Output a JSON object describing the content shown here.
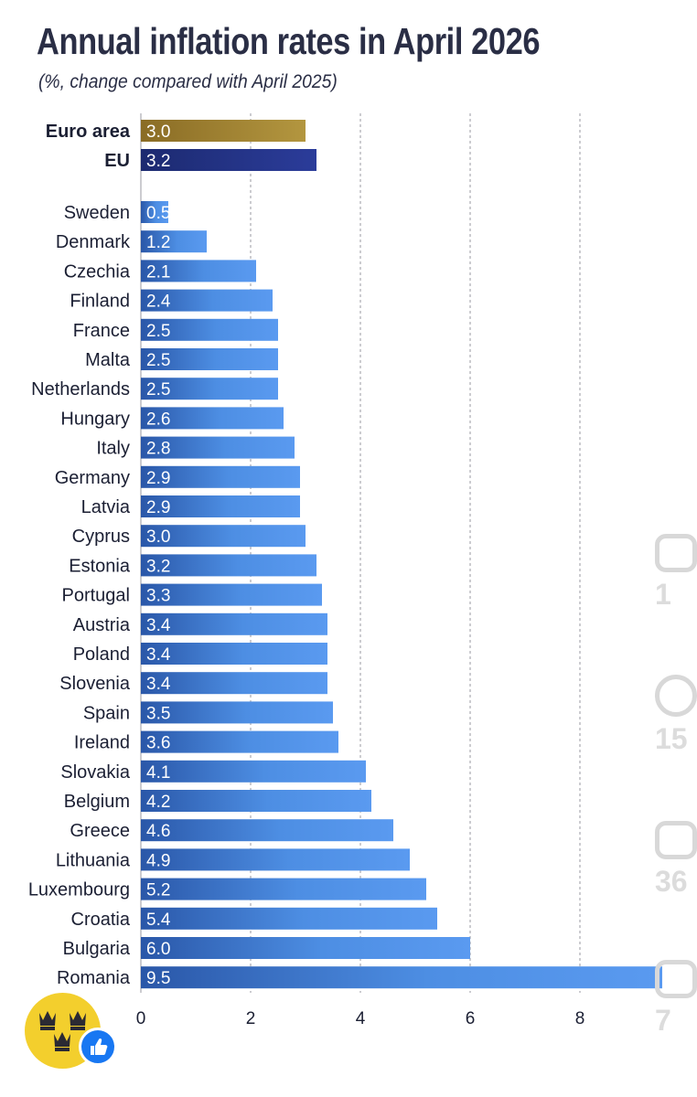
{
  "chart_data": {
    "type": "bar",
    "orientation": "horizontal",
    "title": "Annual inflation rates in April 2026",
    "subtitle": "(%, change compared with April 2025)",
    "aggregates": [
      "Euro area",
      "EU"
    ],
    "categories": [
      "Euro area",
      "EU",
      "Sweden",
      "Denmark",
      "Czechia",
      "Finland",
      "France",
      "Malta",
      "Netherlands",
      "Hungary",
      "Italy",
      "Germany",
      "Latvia",
      "Cyprus",
      "Estonia",
      "Portugal",
      "Austria",
      "Poland",
      "Slovenia",
      "Spain",
      "Ireland",
      "Slovakia",
      "Belgium",
      "Greece",
      "Lithuania",
      "Luxembourg",
      "Croatia",
      "Bulgaria",
      "Romania"
    ],
    "values": [
      3.0,
      3.2,
      0.5,
      1.2,
      2.1,
      2.4,
      2.5,
      2.5,
      2.5,
      2.6,
      2.8,
      2.9,
      2.9,
      3.0,
      3.2,
      3.3,
      3.4,
      3.4,
      3.4,
      3.5,
      3.6,
      4.1,
      4.2,
      4.6,
      4.9,
      5.2,
      5.4,
      6.0,
      9.5
    ],
    "value_labels": [
      "3.0",
      "3.2",
      "0.5",
      "1.2",
      "2.1",
      "2.4",
      "2.5",
      "2.5",
      "2.5",
      "2.6",
      "2.8",
      "2.9",
      "2.9",
      "3.0",
      "3.2",
      "3.3",
      "3.4",
      "3.4",
      "3.4",
      "3.5",
      "3.6",
      "4.1",
      "4.2",
      "4.6",
      "4.9",
      "5.2",
      "5.4",
      "6.0",
      "9.5"
    ],
    "x_ticks": [
      0,
      2,
      4,
      6,
      8
    ],
    "x_tick_labels": [
      "0",
      "2",
      "4",
      "6",
      "8"
    ],
    "xlim": [
      0,
      10
    ],
    "grid": true,
    "colors": {
      "euro_area": "#a8883a",
      "eu": "#223585",
      "country": "#4d8ee3",
      "country_dark": "#2a57a8",
      "text": "#1b1f33"
    }
  },
  "overlay": {
    "actions": [
      {
        "icon": "thumbs-up-icon",
        "count": "1"
      },
      {
        "icon": "comment-icon",
        "count": "15"
      },
      {
        "icon": "share-icon",
        "count": "36"
      },
      {
        "icon": "bookmark-icon",
        "count": "7"
      }
    ],
    "badge_icon": "crowns-icon",
    "like_icon": "like-icon"
  }
}
